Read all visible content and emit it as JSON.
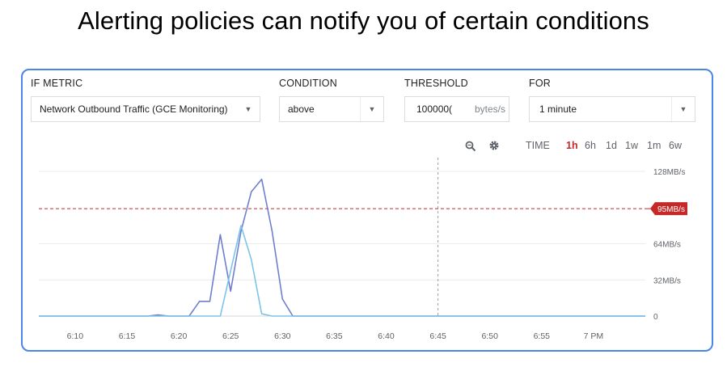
{
  "slide": {
    "title": "Alerting policies can notify you of certain conditions"
  },
  "form": {
    "metric": {
      "label": "IF METRIC",
      "value": "Network Outbound Traffic (GCE Monitoring)"
    },
    "condition": {
      "label": "CONDITION",
      "value": "above"
    },
    "threshold": {
      "label": "THRESHOLD",
      "value": "100000(",
      "unit": "bytes/s"
    },
    "for": {
      "label": "FOR",
      "value": "1 minute"
    }
  },
  "toolbar": {
    "icons": [
      "zoom-icon",
      "gear-icon"
    ],
    "time_label": "TIME",
    "ranges": [
      "1h",
      "6h",
      "1d",
      "1w",
      "1m",
      "6w"
    ],
    "active_range": "1h"
  },
  "chart_data": {
    "type": "line",
    "x_ticks": [
      "6:10",
      "6:15",
      "6:20",
      "6:25",
      "6:30",
      "6:35",
      "6:40",
      "6:45",
      "6:50",
      "6:55",
      "7 PM"
    ],
    "y_ticks": [
      "0",
      "32MB/s",
      "64MB/s",
      "128MB/s"
    ],
    "ylim": [
      0,
      128
    ],
    "xlim_minutes": [
      6.5,
      65
    ],
    "threshold": {
      "value": 95,
      "label": "95MB/s",
      "color": "#c62828"
    },
    "cursor_x_minutes": 45,
    "series": [
      {
        "color": "#6f7fd0",
        "points": [
          [
            6.5,
            0
          ],
          [
            17,
            0
          ],
          [
            18,
            1
          ],
          [
            19,
            0
          ],
          [
            21,
            0
          ],
          [
            22,
            13
          ],
          [
            23,
            13
          ],
          [
            24,
            72
          ],
          [
            25,
            22
          ],
          [
            26,
            75
          ],
          [
            27,
            110
          ],
          [
            28,
            121
          ],
          [
            29,
            75
          ],
          [
            30,
            15
          ],
          [
            31,
            0
          ],
          [
            65,
            0
          ]
        ]
      },
      {
        "color": "#7cc4e8",
        "points": [
          [
            6.5,
            0
          ],
          [
            24,
            0
          ],
          [
            25,
            40
          ],
          [
            26,
            80
          ],
          [
            27,
            50
          ],
          [
            28,
            2
          ],
          [
            29,
            0
          ],
          [
            65,
            0
          ]
        ]
      }
    ],
    "grid": true
  }
}
